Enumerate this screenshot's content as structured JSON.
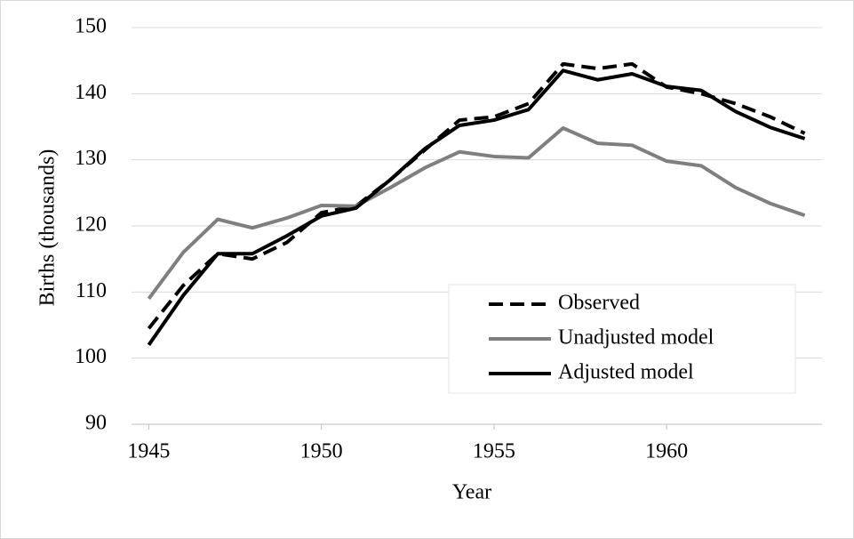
{
  "chart_data": {
    "type": "line",
    "x_label": "Year",
    "y_label": "Births (thousands)",
    "x": [
      1945,
      1946,
      1947,
      1948,
      1949,
      1950,
      1951,
      1952,
      1953,
      1954,
      1955,
      1956,
      1957,
      1958,
      1959,
      1960,
      1961,
      1962,
      1963,
      1964
    ],
    "series": [
      {
        "name": "Observed",
        "color": "#000000",
        "dash": true,
        "values": [
          104.5,
          111,
          115.8,
          115,
          117.5,
          122,
          123,
          127,
          131.5,
          136,
          136.5,
          138.5,
          144.5,
          143.8,
          144.5,
          141,
          140,
          138.5,
          136.5,
          134
        ]
      },
      {
        "name": "Unadjusted model",
        "color": "#7f7f7f",
        "dash": false,
        "values": [
          109,
          116,
          121,
          119.7,
          121.2,
          123.1,
          123,
          125.8,
          128.8,
          131.2,
          130.5,
          130.3,
          134.8,
          132.5,
          132.2,
          129.8,
          129.1,
          125.8,
          123.4,
          121.6
        ]
      },
      {
        "name": "Adjusted model",
        "color": "#000000",
        "dash": false,
        "values": [
          102,
          109.5,
          115.8,
          115.8,
          118.5,
          121.5,
          122.7,
          127,
          131.7,
          135.2,
          136,
          137.6,
          143.5,
          142.1,
          143,
          141.1,
          140.5,
          137.3,
          134.9,
          133.2
        ]
      }
    ],
    "xlim": [
      1944.5,
      1964.5
    ],
    "xticks": [
      1945,
      1950,
      1955,
      1960
    ],
    "ylim": [
      90,
      150
    ],
    "yticks": [
      90,
      100,
      110,
      120,
      130,
      140,
      150
    ],
    "grid": true,
    "legend": "lower right"
  }
}
